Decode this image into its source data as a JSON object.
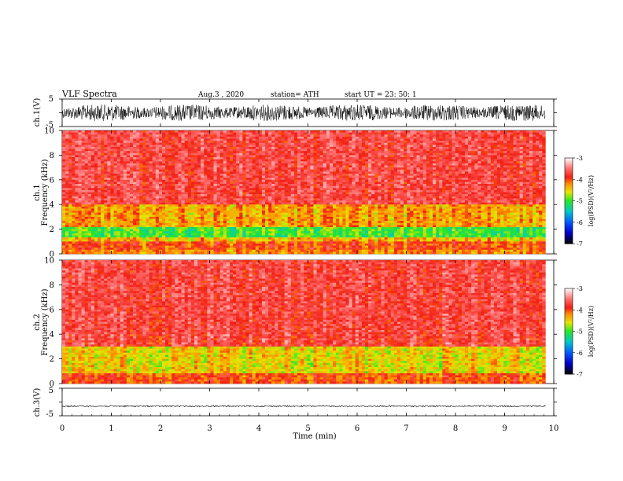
{
  "header": {
    "title": "VLF  Spectra",
    "date": "Aug.3  , 2020",
    "station": "station= ATH",
    "start": "start  UT  =    23: 50: 1"
  },
  "chart_data": [
    {
      "type": "line",
      "panel": "ch1_waveform",
      "ylabel": "ch.1(V)",
      "ylim": [
        -5,
        5
      ],
      "yticks": [
        "5",
        "-5"
      ],
      "xlim": [
        0,
        10
      ],
      "amplitude_approx": 3
    },
    {
      "type": "heatmap",
      "panel": "ch1_spectrogram",
      "ylabel_top": "ch.1",
      "ylabel": "Frequency  (kHz)",
      "ylim": [
        0,
        10
      ],
      "yticks": [
        "0",
        "2",
        "4",
        "6",
        "8",
        "10"
      ],
      "xlim": [
        0,
        9.83
      ],
      "colorbar": {
        "label": "log(PSD)(V²/Hz)",
        "ticks": [
          "-3",
          "-4",
          "-5",
          "-6",
          "-7"
        ],
        "range": [
          -7,
          -3
        ]
      },
      "bands": [
        {
          "from_khz": 0.0,
          "to_khz": 0.4,
          "level": -4.2
        },
        {
          "from_khz": 0.4,
          "to_khz": 1.0,
          "level": -4.0
        },
        {
          "from_khz": 1.0,
          "to_khz": 1.4,
          "level": -4.4
        },
        {
          "from_khz": 1.4,
          "to_khz": 2.2,
          "level": -5.0
        },
        {
          "from_khz": 2.2,
          "to_khz": 4.0,
          "level": -4.3
        },
        {
          "from_khz": 4.0,
          "to_khz": 10.0,
          "level": -3.7
        }
      ]
    },
    {
      "type": "heatmap",
      "panel": "ch2_spectrogram",
      "ylabel_top": "ch.2",
      "ylabel": "Frequency  (kHz)",
      "ylim": [
        0,
        10
      ],
      "yticks": [
        "0",
        "2",
        "4",
        "6",
        "8",
        "10"
      ],
      "xlim": [
        0,
        9.83
      ],
      "colorbar": {
        "label": "log(PSD)(V²/Hz)",
        "ticks": [
          "-3",
          "-4",
          "-5",
          "-6",
          "-7"
        ],
        "range": [
          -7,
          -3
        ]
      },
      "bands": [
        {
          "from_khz": 0.0,
          "to_khz": 0.8,
          "level": -4.0
        },
        {
          "from_khz": 0.8,
          "to_khz": 3.0,
          "level": -4.5
        },
        {
          "from_khz": 3.0,
          "to_khz": 10.0,
          "level": -3.7
        }
      ]
    },
    {
      "type": "line",
      "panel": "ch3_waveform",
      "ylabel": "ch.3(V)",
      "ylim": [
        -5,
        5
      ],
      "yticks": [
        "5",
        "-5"
      ],
      "xlim": [
        0,
        10
      ],
      "amplitude_approx": 0.3,
      "offset": -1.5
    }
  ],
  "xaxis": {
    "label": "Time  (min)",
    "ticks": [
      "0",
      "1",
      "2",
      "3",
      "4",
      "5",
      "6",
      "7",
      "8",
      "9",
      "10"
    ],
    "range": [
      0,
      10
    ]
  }
}
